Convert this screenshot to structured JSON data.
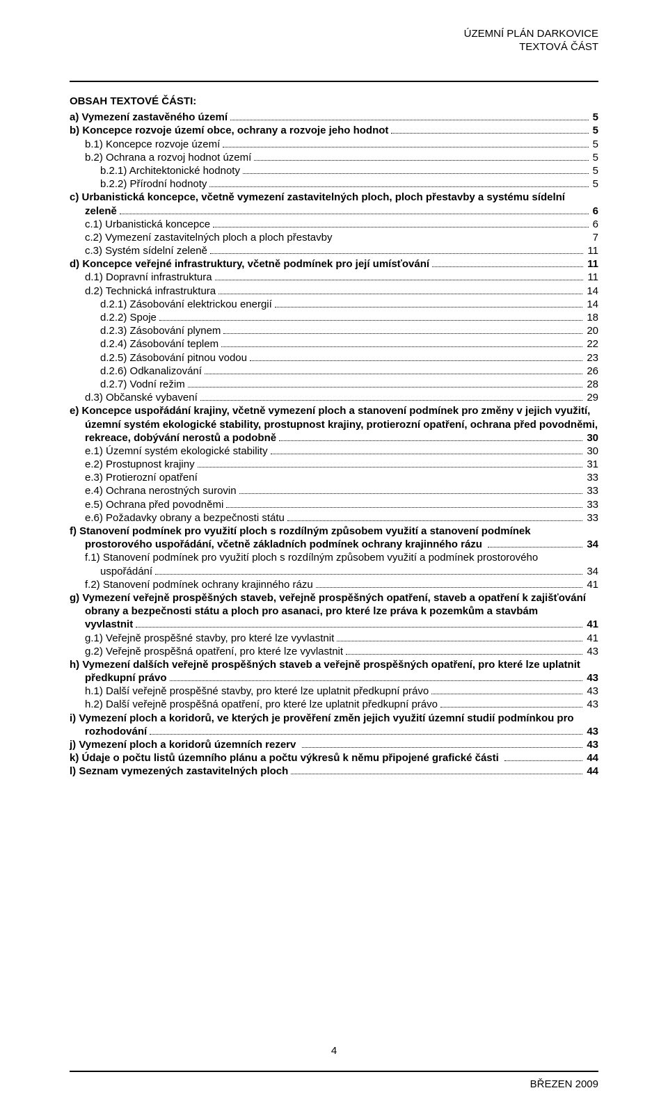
{
  "header": {
    "line1": "ÚZEMNÍ PLÁN DARKOVICE",
    "line2": "TEXTOVÁ ČÁST"
  },
  "toc_title": "OBSAH TEXTOVÉ ČÁSTI:",
  "entries": [
    {
      "text": "a) Vymezení zastavěného území",
      "page": "5",
      "bold": true,
      "indent": 0
    },
    {
      "text": "b) Koncepce rozvoje území obce, ochrany a rozvoje jeho hodnot",
      "page": " 5",
      "bold": true,
      "indent": 0
    },
    {
      "text": "b.1) Koncepce rozvoje území",
      "page": "5",
      "bold": false,
      "indent": 1
    },
    {
      "text": "b.2) Ochrana a rozvoj hodnot území",
      "page": "5",
      "bold": false,
      "indent": 1
    },
    {
      "text": "b.2.1) Architektonické hodnoty",
      "page": "5",
      "bold": false,
      "indent": 2
    },
    {
      "text": "b.2.2) Přírodní hodnoty",
      "page": " 5",
      "bold": false,
      "indent": 2
    },
    {
      "text": "c) Urbanistická koncepce, včetně vymezení zastavitelných ploch, ploch přestavby a systému sídelní zeleně",
      "page": " 6",
      "bold": true,
      "indent": 0
    },
    {
      "text": "c.1) Urbanistická koncepce",
      "page": " 6",
      "bold": false,
      "indent": 1
    },
    {
      "text": "c.2) Vymezení zastavitelných ploch a ploch přestavby",
      "page": "7",
      "bold": false,
      "indent": 1,
      "nodots": true
    },
    {
      "text": "c.3) Systém sídelní zeleně",
      "page": " 11",
      "bold": false,
      "indent": 1
    },
    {
      "text": "d) Koncepce veřejné infrastruktury, včetně podmínek pro její umísťování",
      "page": "11",
      "bold": true,
      "indent": 0
    },
    {
      "text": "d.1) Dopravní infrastruktura",
      "page": "11",
      "bold": false,
      "indent": 1
    },
    {
      "text": "d.2) Technická infrastruktura",
      "page": "14",
      "bold": false,
      "indent": 1
    },
    {
      "text": "d.2.1) Zásobování elektrickou energií",
      "page": "14",
      "bold": false,
      "indent": 2
    },
    {
      "text": "d.2.2) Spoje",
      "page": " 18",
      "bold": false,
      "indent": 2
    },
    {
      "text": "d.2.3) Zásobování plynem",
      "page": " 20",
      "bold": false,
      "indent": 2
    },
    {
      "text": "d.2.4) Zásobování teplem",
      "page": " 22",
      "bold": false,
      "indent": 2
    },
    {
      "text": "d.2.5) Zásobování pitnou vodou",
      "page": " 23",
      "bold": false,
      "indent": 2
    },
    {
      "text": "d.2.6) Odkanalizování",
      "page": " 26",
      "bold": false,
      "indent": 2
    },
    {
      "text": "d.2.7) Vodní režim",
      "page": " 28",
      "bold": false,
      "indent": 2
    },
    {
      "text": "d.3) Občanské vybavení",
      "page": " 29",
      "bold": false,
      "indent": 1
    },
    {
      "text": "e) Koncepce uspořádání krajiny, včetně vymezení ploch a stanovení podmínek pro změny v jejich využití, územní systém ekologické stability, prostupnost krajiny, protierozní opatření, ochrana před povodněmi, rekreace, dobývání nerostů a podobně",
      "page": " 30",
      "bold": true,
      "indent": 0
    },
    {
      "text": "e.1) Územní systém ekologické stability",
      "page": " 30",
      "bold": false,
      "indent": 1
    },
    {
      "text": "e.2) Prostupnost krajiny",
      "page": " 31",
      "bold": false,
      "indent": 1
    },
    {
      "text": "e.3) Protierozní opatření",
      "page": " 33",
      "bold": false,
      "indent": 1,
      "nodots": true
    },
    {
      "text": "e.4) Ochrana nerostných surovin",
      "page": " 33",
      "bold": false,
      "indent": 1
    },
    {
      "text": "e.5) Ochrana před povodněmi",
      "page": " 33",
      "bold": false,
      "indent": 1
    },
    {
      "text": "e.6) Požadavky obrany a bezpečnosti státu",
      "page": " 33",
      "bold": false,
      "indent": 1
    },
    {
      "text": "f) Stanovení podmínek pro využití ploch s rozdílným způsobem využití a stanovení podmínek prostorového uspořádání, včetně základních podmínek ochrany krajinného rázu ",
      "page": " 34",
      "bold": true,
      "indent": 0
    },
    {
      "text": "f.1) Stanovení podmínek pro využití ploch s rozdílným způsobem využití a podmínek prostorového uspořádání",
      "page": " 34",
      "bold": false,
      "indent": 1
    },
    {
      "text": "f.2) Stanovení podmínek ochrany krajinného rázu",
      "page": " 41",
      "bold": false,
      "indent": 1
    },
    {
      "text": "g) Vymezení veřejně prospěšných staveb, veřejně prospěšných opatření, staveb a opatření k zajišťování obrany a bezpečnosti státu a ploch pro asanaci, pro které lze práva k pozemkům a stavbám vyvlastnit",
      "page": " 41",
      "bold": true,
      "indent": 0
    },
    {
      "text": "g.1) Veřejně prospěšné stavby, pro které lze vyvlastnit",
      "page": " 41",
      "bold": false,
      "indent": 1
    },
    {
      "text": "g.2) Veřejně prospěšná opatření, pro které lze vyvlastnit",
      "page": " 43",
      "bold": false,
      "indent": 1
    },
    {
      "text": "h) Vymezení dalších veřejně prospěšných staveb a veřejně prospěšných opatření, pro které lze uplatnit předkupní právo",
      "page": " 43",
      "bold": true,
      "indent": 0
    },
    {
      "text": "h.1) Další veřejně prospěšné stavby, pro které lze uplatnit předkupní právo",
      "page": " 43",
      "bold": false,
      "indent": 1
    },
    {
      "text": "h.2) Další veřejně prospěšná opatření, pro které lze uplatnit předkupní právo",
      "page": " 43",
      "bold": false,
      "indent": 1
    },
    {
      "text": "i) Vymezení ploch a koridorů, ve kterých je prověření změn jejich využití územní studií podmínkou pro rozhodování",
      "page": " 43",
      "bold": true,
      "indent": 0
    },
    {
      "text": "j) Vymezení ploch a koridorů územních rezerv ",
      "page": " 43",
      "bold": true,
      "indent": 0
    },
    {
      "text": "k) Údaje o počtu listů územního plánu a počtu výkresů k němu připojené grafické části ",
      "page": " 44",
      "bold": true,
      "indent": 0
    },
    {
      "text": "l) Seznam vymezených zastavitelných ploch",
      "page": " 44",
      "bold": true,
      "indent": 0
    }
  ],
  "page_number": "4",
  "footer": "BŘEZEN 2009"
}
